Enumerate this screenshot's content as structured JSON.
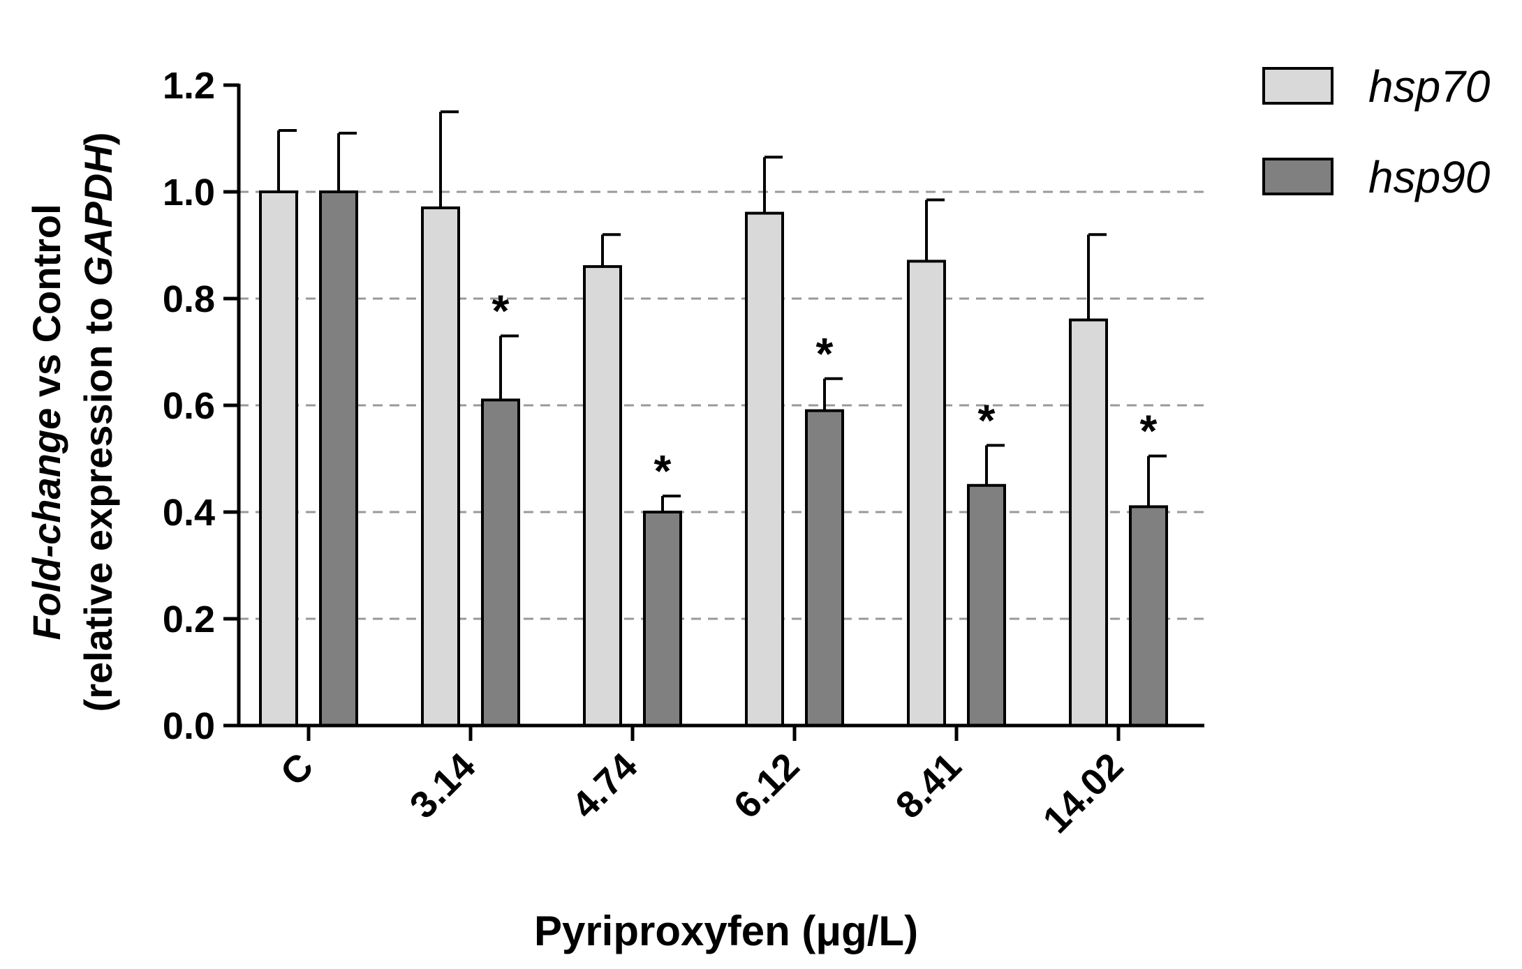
{
  "chart_data": {
    "type": "bar",
    "title": "",
    "xlabel": "Pyriproxyfen (μg/L)",
    "ylabel": {
      "line1_italic": "Fold-change",
      "line1_rest": " vs Control",
      "line2_pre": "(relative expression to ",
      "line2_italic": "GAPDH",
      "line2_post": ")"
    },
    "categories": [
      "C",
      "3.14",
      "4.74",
      "6.12",
      "8.41",
      "14.02"
    ],
    "series": [
      {
        "name": "hsp70",
        "color": "#d9d9d9",
        "values": [
          1.0,
          0.97,
          0.86,
          0.96,
          0.87,
          0.76
        ],
        "errors": [
          0.115,
          0.18,
          0.06,
          0.105,
          0.115,
          0.16
        ],
        "significant": [
          false,
          false,
          false,
          false,
          false,
          false
        ]
      },
      {
        "name": "hsp90",
        "color": "#808080",
        "values": [
          1.0,
          0.61,
          0.4,
          0.59,
          0.45,
          0.41
        ],
        "errors": [
          0.11,
          0.12,
          0.03,
          0.06,
          0.075,
          0.095
        ],
        "significant": [
          false,
          true,
          true,
          true,
          true,
          true
        ]
      }
    ],
    "significance_marker": "*",
    "ylim": [
      0,
      1.2
    ],
    "yticks": [
      "0.0",
      "0.2",
      "0.4",
      "0.6",
      "0.8",
      "1.0",
      "1.2"
    ],
    "gridlines": [
      0.2,
      0.4,
      0.6,
      0.8,
      1.0
    ],
    "grid": "horizontal-dashed",
    "legend_position": "top-right"
  }
}
